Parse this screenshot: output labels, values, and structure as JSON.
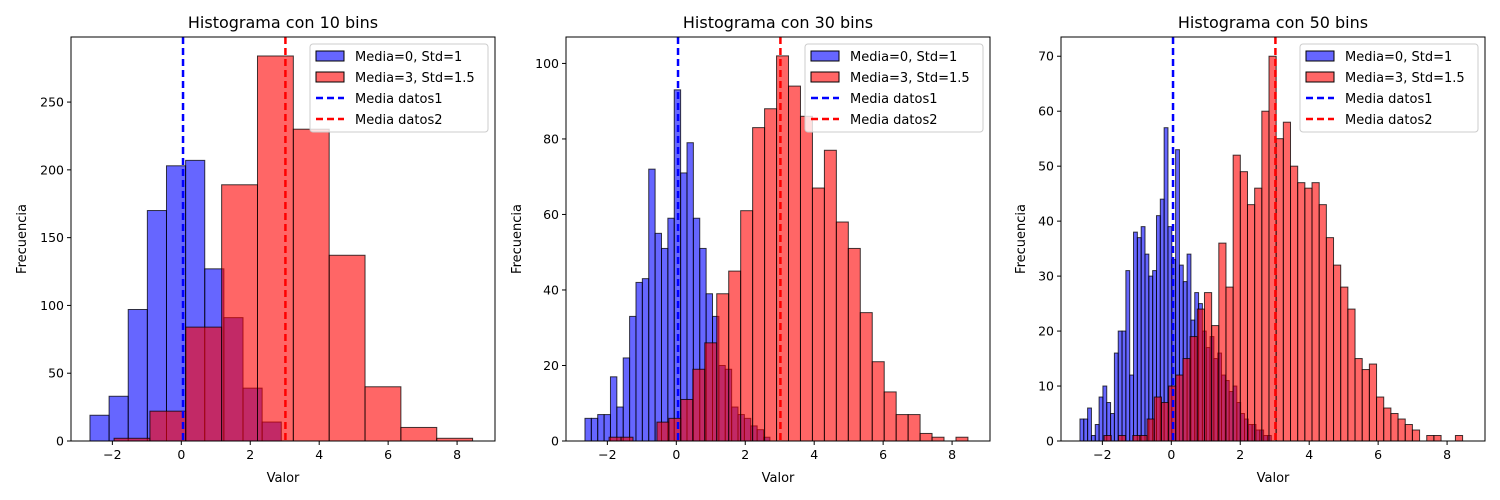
{
  "colors": {
    "series1": "#0000ff",
    "series2": "#ff0000",
    "bar_alpha": 0.6,
    "edge": "#000000",
    "mean1_line": "#0000ff",
    "mean2_line": "#ff0000"
  },
  "legend": {
    "placement": "top-right",
    "entries": [
      "Media=0, Std=1",
      "Media=3, Std=1.5",
      "Media datos1",
      "Media datos2"
    ]
  },
  "chart_data": [
    {
      "type": "bar",
      "title": "Histograma con 10 bins",
      "xlabel": "Valor",
      "ylabel": "Frecuencia",
      "xlim": [
        -3.2,
        9.1
      ],
      "ylim": [
        0,
        298
      ],
      "xticks": [
        -2,
        0,
        2,
        4,
        6,
        8
      ],
      "xtick_labels": [
        "−2",
        "0",
        "2",
        "4",
        "6",
        "8"
      ],
      "yticks": [
        0,
        50,
        100,
        150,
        200,
        250
      ],
      "grid": false,
      "mean_lines": [
        0.05,
        3.02
      ],
      "series": [
        {
          "name": "Media=0, Std=1",
          "bin_start": -2.65,
          "bin_width": 0.555,
          "values": [
            19,
            33,
            97,
            170,
            203,
            207,
            127,
            91,
            39,
            14
          ]
        },
        {
          "name": "Media=3, Std=1.5",
          "bin_start": -1.95,
          "bin_width": 1.04,
          "values": [
            2,
            22,
            84,
            189,
            284,
            230,
            137,
            40,
            10,
            2
          ]
        }
      ]
    },
    {
      "type": "bar",
      "title": "Histograma con 30 bins",
      "xlabel": "Valor",
      "ylabel": "Frecuencia",
      "xlim": [
        -3.2,
        9.1
      ],
      "ylim": [
        0,
        107
      ],
      "xticks": [
        -2,
        0,
        2,
        4,
        6,
        8
      ],
      "xtick_labels": [
        "−2",
        "0",
        "2",
        "4",
        "6",
        "8"
      ],
      "yticks": [
        0,
        20,
        40,
        60,
        80,
        100
      ],
      "grid": false,
      "mean_lines": [
        0.05,
        3.02
      ],
      "series": [
        {
          "name": "Media=0, Std=1",
          "bin_start": -2.65,
          "bin_width": 0.185,
          "values": [
            6,
            6,
            7,
            7,
            17,
            9,
            22,
            33,
            42,
            43,
            72,
            55,
            51,
            59,
            93,
            71,
            79,
            59,
            51,
            39,
            33,
            20,
            19,
            9,
            7,
            6,
            4,
            3,
            1,
            0
          ]
        },
        {
          "name": "Media=3, Std=1.5",
          "bin_start": -1.95,
          "bin_width": 0.347,
          "values": [
            1,
            1,
            0,
            0,
            5,
            6,
            11,
            19,
            26,
            39,
            45,
            61,
            83,
            88,
            102,
            94,
            86,
            67,
            77,
            58,
            51,
            34,
            21,
            13,
            7,
            7,
            2,
            1,
            0,
            1
          ]
        }
      ]
    },
    {
      "type": "bar",
      "title": "Histograma con 50 bins",
      "xlabel": "Valor",
      "ylabel": "Frecuencia",
      "xlim": [
        -3.2,
        9.1
      ],
      "ylim": [
        0,
        73.5
      ],
      "xticks": [
        -2,
        0,
        2,
        4,
        6,
        8
      ],
      "xtick_labels": [
        "−2",
        "0",
        "2",
        "4",
        "6",
        "8"
      ],
      "yticks": [
        0,
        10,
        20,
        30,
        40,
        50,
        60,
        70
      ],
      "grid": false,
      "mean_lines": [
        0.05,
        3.02
      ],
      "series": [
        {
          "name": "Media=0, Std=1",
          "bin_start": -2.65,
          "bin_width": 0.111,
          "values": [
            4,
            4,
            6,
            1,
            3,
            8,
            10,
            7,
            5,
            16,
            20,
            20,
            31,
            12,
            38,
            37,
            39,
            34,
            30,
            31,
            41,
            44,
            57,
            39,
            33,
            53,
            32,
            29,
            34,
            22,
            27,
            25,
            20,
            17,
            19,
            15,
            16,
            12,
            11,
            9,
            10,
            7,
            5,
            4,
            3,
            3,
            2,
            2,
            1,
            1
          ]
        },
        {
          "name": "Media=3, Std=1.5",
          "bin_start": -1.95,
          "bin_width": 0.208,
          "values": [
            1,
            0,
            1,
            0,
            1,
            1,
            4,
            8,
            7,
            10,
            12,
            15,
            19,
            24,
            27,
            21,
            36,
            28,
            52,
            49,
            43,
            46,
            60,
            70,
            55,
            58,
            50,
            47,
            46,
            47,
            43,
            37,
            32,
            28,
            24,
            15,
            13,
            14,
            8,
            6,
            5,
            4,
            3,
            2,
            0,
            1,
            1,
            0,
            0,
            1
          ]
        }
      ]
    }
  ]
}
